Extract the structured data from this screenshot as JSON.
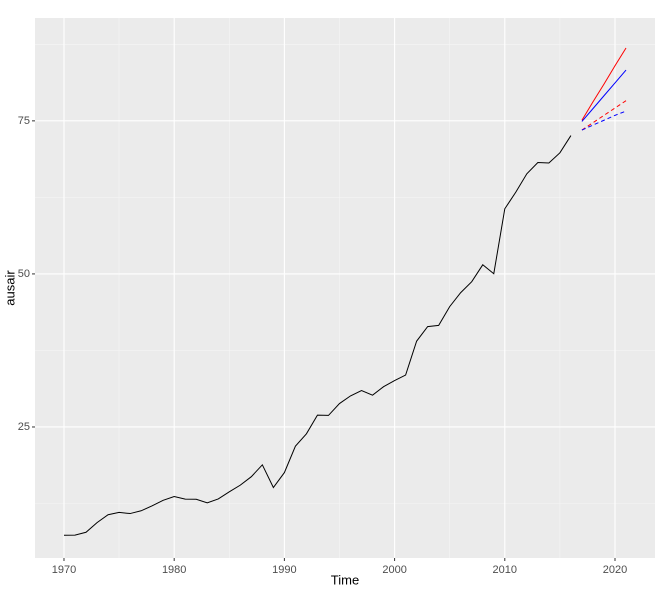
{
  "chart_data": {
    "type": "line",
    "xlabel": "Time",
    "ylabel": "ausair",
    "xlim": [
      1967.37,
      2023.63
    ],
    "ylim": [
      3.6,
      91.8
    ],
    "xticks": [
      1970,
      1980,
      1990,
      2000,
      2010,
      2020
    ],
    "yticks": [
      25,
      50,
      75
    ],
    "grid": true,
    "series": [
      {
        "color": "#000000",
        "linetype": "solid",
        "x": [
          1970,
          1971,
          1972,
          1973,
          1974,
          1975,
          1976,
          1977,
          1978,
          1979,
          1980,
          1981,
          1982,
          1983,
          1984,
          1985,
          1986,
          1987,
          1988,
          1989,
          1990,
          1991,
          1992,
          1993,
          1994,
          1995,
          1996,
          1997,
          1998,
          1999,
          2000,
          2001,
          2002,
          2003,
          2004,
          2005,
          2006,
          2007,
          2008,
          2009,
          2010,
          2011,
          2012,
          2013,
          2014,
          2015,
          2016
        ],
        "values": [
          7.32,
          7.33,
          7.8,
          9.38,
          10.66,
          11.06,
          10.86,
          11.31,
          12.12,
          13.02,
          13.65,
          13.22,
          13.19,
          12.6,
          13.24,
          14.41,
          15.5,
          16.88,
          18.82,
          15.11,
          17.55,
          21.86,
          23.89,
          26.93,
          26.89,
          28.83,
          30.08,
          30.95,
          30.19,
          31.58,
          32.58,
          33.48,
          39.02,
          41.39,
          41.6,
          44.66,
          46.95,
          48.73,
          51.49,
          50.03,
          60.64,
          63.36,
          66.36,
          68.2,
          68.12,
          69.78,
          72.6
        ]
      },
      {
        "color": "#ff0000",
        "linetype": "solid",
        "x": [
          2017,
          2018,
          2019,
          2020,
          2021
        ],
        "values": [
          75.1,
          78.1,
          81.0,
          84.0,
          86.9
        ]
      },
      {
        "color": "#0000ff",
        "linetype": "solid",
        "x": [
          2017,
          2018,
          2019,
          2020,
          2021
        ],
        "values": [
          74.9,
          77.0,
          79.1,
          81.2,
          83.3
        ]
      },
      {
        "color": "#ff0000",
        "linetype": "dashed",
        "x": [
          2017,
          2018,
          2019,
          2020,
          2021
        ],
        "values": [
          73.5,
          74.7,
          75.9,
          77.1,
          78.3
        ]
      },
      {
        "color": "#0000ff",
        "linetype": "dashed",
        "x": [
          2017,
          2018,
          2019,
          2020,
          2021
        ],
        "values": [
          73.5,
          74.3,
          75.1,
          75.9,
          76.6
        ]
      }
    ]
  }
}
